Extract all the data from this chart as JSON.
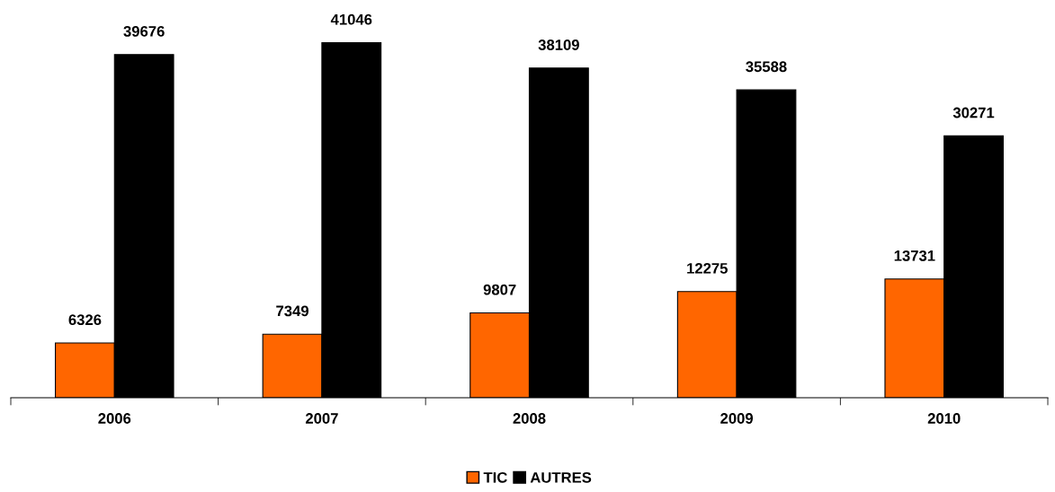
{
  "chart_data": {
    "type": "bar",
    "categories": [
      "2006",
      "2007",
      "2008",
      "2009",
      "2010"
    ],
    "series": [
      {
        "name": "TIC",
        "color": "#ff6600",
        "values": [
          6326,
          7349,
          9807,
          12275,
          13731
        ]
      },
      {
        "name": "AUTRES",
        "color": "#000000",
        "values": [
          39676,
          41046,
          38109,
          35588,
          30271
        ]
      }
    ],
    "data_labels": true,
    "legend": "bottom",
    "grid": false
  }
}
